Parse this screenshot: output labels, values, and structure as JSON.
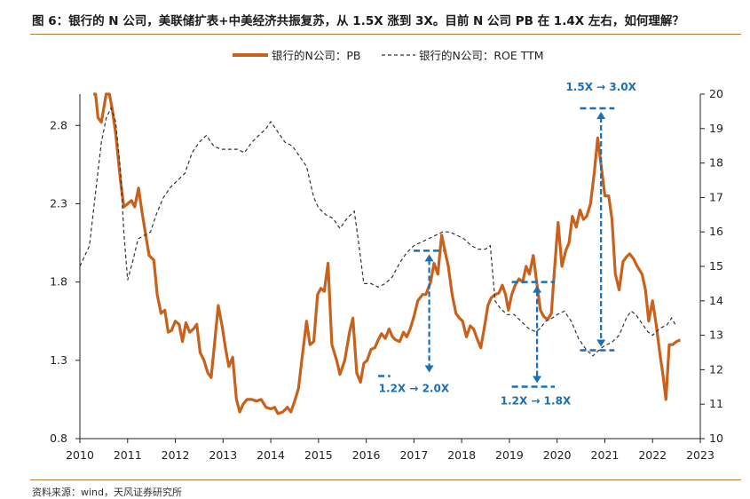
{
  "title": "图 6：银行的 N 公司，美联储扩表+中美经济共振复苏，从 1.5X 涨到 3X。目前 N 公司  PB 在  1.4X 左右，如何理解？",
  "source": "资料来源：wind，天风证券研究所",
  "colors": {
    "pb": "#c8611c",
    "roe": "#333333",
    "annotation": "#1a6fb5",
    "rule": "#b07a3a"
  },
  "chart_data": {
    "type": "line",
    "title": "",
    "xlabel": "",
    "ylabel_left": "",
    "ylabel_right": "",
    "x_ticks": [
      "2010",
      "2011",
      "2012",
      "2013",
      "2014",
      "2015",
      "2016",
      "2017",
      "2018",
      "2019",
      "2020",
      "2021",
      "2022",
      "2023"
    ],
    "xlim": [
      2010,
      2023
    ],
    "ylim_left": [
      0.8,
      3.0
    ],
    "y_ticks_left": [
      "0.8",
      "1.3",
      "1.8",
      "2.3",
      "2.8"
    ],
    "ylim_right": [
      10,
      20
    ],
    "y_ticks_right": [
      "10",
      "11",
      "12",
      "13",
      "14",
      "15",
      "16",
      "17",
      "18",
      "19",
      "20"
    ],
    "series": [
      {
        "name": "银行的N公司：PB",
        "axis": "left",
        "style": "solid",
        "points": [
          [
            2010.28,
            3.0
          ],
          [
            2010.33,
            3.0
          ],
          [
            2010.38,
            2.85
          ],
          [
            2010.45,
            2.82
          ],
          [
            2010.55,
            3.0
          ],
          [
            2010.62,
            3.0
          ],
          [
            2010.68,
            2.9
          ],
          [
            2010.75,
            2.75
          ],
          [
            2010.85,
            2.45
          ],
          [
            2010.92,
            2.28
          ],
          [
            2011.0,
            2.3
          ],
          [
            2011.08,
            2.32
          ],
          [
            2011.15,
            2.28
          ],
          [
            2011.23,
            2.4
          ],
          [
            2011.3,
            2.25
          ],
          [
            2011.38,
            2.1
          ],
          [
            2011.45,
            1.97
          ],
          [
            2011.55,
            1.94
          ],
          [
            2011.62,
            1.72
          ],
          [
            2011.7,
            1.6
          ],
          [
            2011.78,
            1.62
          ],
          [
            2011.85,
            1.48
          ],
          [
            2011.92,
            1.49
          ],
          [
            2012.0,
            1.55
          ],
          [
            2012.08,
            1.53
          ],
          [
            2012.15,
            1.42
          ],
          [
            2012.22,
            1.54
          ],
          [
            2012.3,
            1.48
          ],
          [
            2012.38,
            1.5
          ],
          [
            2012.45,
            1.53
          ],
          [
            2012.52,
            1.35
          ],
          [
            2012.6,
            1.3
          ],
          [
            2012.68,
            1.22
          ],
          [
            2012.75,
            1.19
          ],
          [
            2012.82,
            1.4
          ],
          [
            2012.9,
            1.65
          ],
          [
            2012.98,
            1.52
          ],
          [
            2013.05,
            1.38
          ],
          [
            2013.12,
            1.26
          ],
          [
            2013.2,
            1.32
          ],
          [
            2013.28,
            1.05
          ],
          [
            2013.35,
            0.97
          ],
          [
            2013.42,
            1.02
          ],
          [
            2013.5,
            1.05
          ],
          [
            2013.6,
            1.05
          ],
          [
            2013.7,
            1.04
          ],
          [
            2013.8,
            1.05
          ],
          [
            2013.9,
            1.0
          ],
          [
            2014.0,
            0.99
          ],
          [
            2014.08,
            1.0
          ],
          [
            2014.15,
            0.96
          ],
          [
            2014.25,
            0.97
          ],
          [
            2014.35,
            1.0
          ],
          [
            2014.42,
            0.97
          ],
          [
            2014.5,
            1.04
          ],
          [
            2014.58,
            1.12
          ],
          [
            2014.65,
            1.3
          ],
          [
            2014.75,
            1.55
          ],
          [
            2014.82,
            1.4
          ],
          [
            2014.9,
            1.42
          ],
          [
            2014.98,
            1.72
          ],
          [
            2015.05,
            1.76
          ],
          [
            2015.12,
            1.74
          ],
          [
            2015.2,
            1.92
          ],
          [
            2015.28,
            1.4
          ],
          [
            2015.38,
            1.3
          ],
          [
            2015.45,
            1.21
          ],
          [
            2015.55,
            1.3
          ],
          [
            2015.65,
            1.48
          ],
          [
            2015.72,
            1.57
          ],
          [
            2015.8,
            1.22
          ],
          [
            2015.88,
            1.16
          ],
          [
            2015.95,
            1.28
          ],
          [
            2016.02,
            1.3
          ],
          [
            2016.1,
            1.37
          ],
          [
            2016.18,
            1.38
          ],
          [
            2016.25,
            1.43
          ],
          [
            2016.32,
            1.47
          ],
          [
            2016.4,
            1.44
          ],
          [
            2016.48,
            1.5
          ],
          [
            2016.55,
            1.45
          ],
          [
            2016.62,
            1.43
          ],
          [
            2016.7,
            1.42
          ],
          [
            2016.78,
            1.48
          ],
          [
            2016.85,
            1.45
          ],
          [
            2016.92,
            1.5
          ],
          [
            2017.0,
            1.58
          ],
          [
            2017.08,
            1.68
          ],
          [
            2017.18,
            1.72
          ],
          [
            2017.25,
            1.72
          ],
          [
            2017.35,
            1.8
          ],
          [
            2017.42,
            1.92
          ],
          [
            2017.5,
            1.85
          ],
          [
            2017.58,
            2.1
          ],
          [
            2017.65,
            2.0
          ],
          [
            2017.72,
            1.9
          ],
          [
            2017.8,
            1.72
          ],
          [
            2017.88,
            1.6
          ],
          [
            2017.95,
            1.57
          ],
          [
            2018.02,
            1.55
          ],
          [
            2018.1,
            1.45
          ],
          [
            2018.18,
            1.52
          ],
          [
            2018.25,
            1.5
          ],
          [
            2018.32,
            1.44
          ],
          [
            2018.4,
            1.38
          ],
          [
            2018.48,
            1.52
          ],
          [
            2018.55,
            1.65
          ],
          [
            2018.62,
            1.7
          ],
          [
            2018.7,
            1.72
          ],
          [
            2018.78,
            1.73
          ],
          [
            2018.85,
            1.78
          ],
          [
            2018.92,
            1.72
          ],
          [
            2018.98,
            1.62
          ],
          [
            2019.05,
            1.72
          ],
          [
            2019.12,
            1.78
          ],
          [
            2019.2,
            1.82
          ],
          [
            2019.28,
            1.8
          ],
          [
            2019.35,
            1.9
          ],
          [
            2019.42,
            1.85
          ],
          [
            2019.5,
            1.97
          ],
          [
            2019.58,
            1.78
          ],
          [
            2019.65,
            1.62
          ],
          [
            2019.72,
            1.58
          ],
          [
            2019.8,
            1.56
          ],
          [
            2019.88,
            1.6
          ],
          [
            2019.95,
            1.9
          ],
          [
            2020.02,
            2.18
          ],
          [
            2020.1,
            1.9
          ],
          [
            2020.18,
            2.0
          ],
          [
            2020.25,
            2.05
          ],
          [
            2020.32,
            2.22
          ],
          [
            2020.4,
            2.15
          ],
          [
            2020.48,
            2.26
          ],
          [
            2020.55,
            2.2
          ],
          [
            2020.62,
            2.22
          ],
          [
            2020.7,
            2.3
          ],
          [
            2020.78,
            2.5
          ],
          [
            2020.85,
            2.72
          ],
          [
            2020.92,
            2.55
          ],
          [
            2021.0,
            2.35
          ],
          [
            2021.08,
            2.35
          ],
          [
            2021.15,
            2.2
          ],
          [
            2021.22,
            1.85
          ],
          [
            2021.3,
            1.75
          ],
          [
            2021.38,
            1.93
          ],
          [
            2021.45,
            1.96
          ],
          [
            2021.52,
            1.98
          ],
          [
            2021.6,
            1.95
          ],
          [
            2021.68,
            1.9
          ],
          [
            2021.78,
            1.85
          ],
          [
            2021.85,
            1.75
          ],
          [
            2021.92,
            1.55
          ],
          [
            2022.0,
            1.68
          ],
          [
            2022.08,
            1.52
          ],
          [
            2022.15,
            1.35
          ],
          [
            2022.22,
            1.2
          ],
          [
            2022.28,
            1.05
          ],
          [
            2022.35,
            1.4
          ],
          [
            2022.42,
            1.4
          ],
          [
            2022.5,
            1.42
          ],
          [
            2022.58,
            1.43
          ]
        ]
      },
      {
        "name": "银行的N公司：ROE TTM",
        "axis": "right",
        "style": "dashed",
        "points": [
          [
            2010.0,
            15.0
          ],
          [
            2010.1,
            15.3
          ],
          [
            2010.2,
            15.6
          ],
          [
            2010.3,
            16.8
          ],
          [
            2010.45,
            18.6
          ],
          [
            2010.55,
            19.3
          ],
          [
            2010.65,
            19.6
          ],
          [
            2010.75,
            19.2
          ],
          [
            2010.85,
            17.8
          ],
          [
            2010.92,
            16.0
          ],
          [
            2011.0,
            14.6
          ],
          [
            2011.1,
            15.1
          ],
          [
            2011.22,
            15.8
          ],
          [
            2011.35,
            15.9
          ],
          [
            2011.48,
            16.0
          ],
          [
            2011.6,
            16.5
          ],
          [
            2011.75,
            17.0
          ],
          [
            2011.9,
            17.3
          ],
          [
            2012.05,
            17.5
          ],
          [
            2012.2,
            17.7
          ],
          [
            2012.35,
            18.3
          ],
          [
            2012.5,
            18.6
          ],
          [
            2012.65,
            18.8
          ],
          [
            2012.8,
            18.5
          ],
          [
            2012.95,
            18.4
          ],
          [
            2013.1,
            18.4
          ],
          [
            2013.3,
            18.4
          ],
          [
            2013.45,
            18.3
          ],
          [
            2013.6,
            18.6
          ],
          [
            2013.75,
            18.8
          ],
          [
            2013.9,
            19.0
          ],
          [
            2014.0,
            19.2
          ],
          [
            2014.15,
            18.9
          ],
          [
            2014.3,
            18.6
          ],
          [
            2014.45,
            18.5
          ],
          [
            2014.6,
            18.2
          ],
          [
            2014.75,
            17.9
          ],
          [
            2014.9,
            17.0
          ],
          [
            2015.0,
            16.7
          ],
          [
            2015.15,
            16.5
          ],
          [
            2015.3,
            16.4
          ],
          [
            2015.45,
            16.1
          ],
          [
            2015.6,
            16.4
          ],
          [
            2015.75,
            16.6
          ],
          [
            2015.85,
            15.6
          ],
          [
            2015.95,
            14.5
          ],
          [
            2016.1,
            14.5
          ],
          [
            2016.25,
            14.4
          ],
          [
            2016.4,
            14.5
          ],
          [
            2016.55,
            14.7
          ],
          [
            2016.7,
            15.1
          ],
          [
            2016.85,
            15.4
          ],
          [
            2017.0,
            15.6
          ],
          [
            2017.15,
            15.7
          ],
          [
            2017.3,
            15.8
          ],
          [
            2017.45,
            15.9
          ],
          [
            2017.6,
            16.0
          ],
          [
            2017.75,
            16.0
          ],
          [
            2017.9,
            15.9
          ],
          [
            2018.05,
            15.8
          ],
          [
            2018.2,
            15.6
          ],
          [
            2018.35,
            15.5
          ],
          [
            2018.5,
            15.5
          ],
          [
            2018.6,
            15.6
          ],
          [
            2018.7,
            14.0
          ],
          [
            2018.8,
            13.8
          ],
          [
            2018.95,
            13.6
          ],
          [
            2019.1,
            13.6
          ],
          [
            2019.25,
            13.4
          ],
          [
            2019.4,
            13.2
          ],
          [
            2019.55,
            13.1
          ],
          [
            2019.65,
            13.2
          ],
          [
            2019.75,
            13.4
          ],
          [
            2019.9,
            13.5
          ],
          [
            2020.0,
            13.6
          ],
          [
            2020.15,
            13.7
          ],
          [
            2020.3,
            13.4
          ],
          [
            2020.45,
            12.9
          ],
          [
            2020.6,
            12.6
          ],
          [
            2020.75,
            12.4
          ],
          [
            2020.9,
            12.6
          ],
          [
            2021.0,
            12.7
          ],
          [
            2021.15,
            12.8
          ],
          [
            2021.3,
            13.0
          ],
          [
            2021.45,
            13.5
          ],
          [
            2021.55,
            13.7
          ],
          [
            2021.65,
            13.6
          ],
          [
            2021.75,
            13.4
          ],
          [
            2021.9,
            13.1
          ],
          [
            2022.0,
            13.0
          ],
          [
            2022.15,
            13.2
          ],
          [
            2022.3,
            13.3
          ],
          [
            2022.4,
            13.5
          ],
          [
            2022.48,
            13.3
          ]
        ]
      }
    ],
    "annotations": [
      {
        "text": "1.2X → 2.0X",
        "from": 1.2,
        "to": 2.0
      },
      {
        "text": "1.2X → 1.8X",
        "from": 1.2,
        "to": 1.8
      },
      {
        "text": "1.5X → 3.0X",
        "from": 1.5,
        "to": 3.0
      }
    ]
  }
}
